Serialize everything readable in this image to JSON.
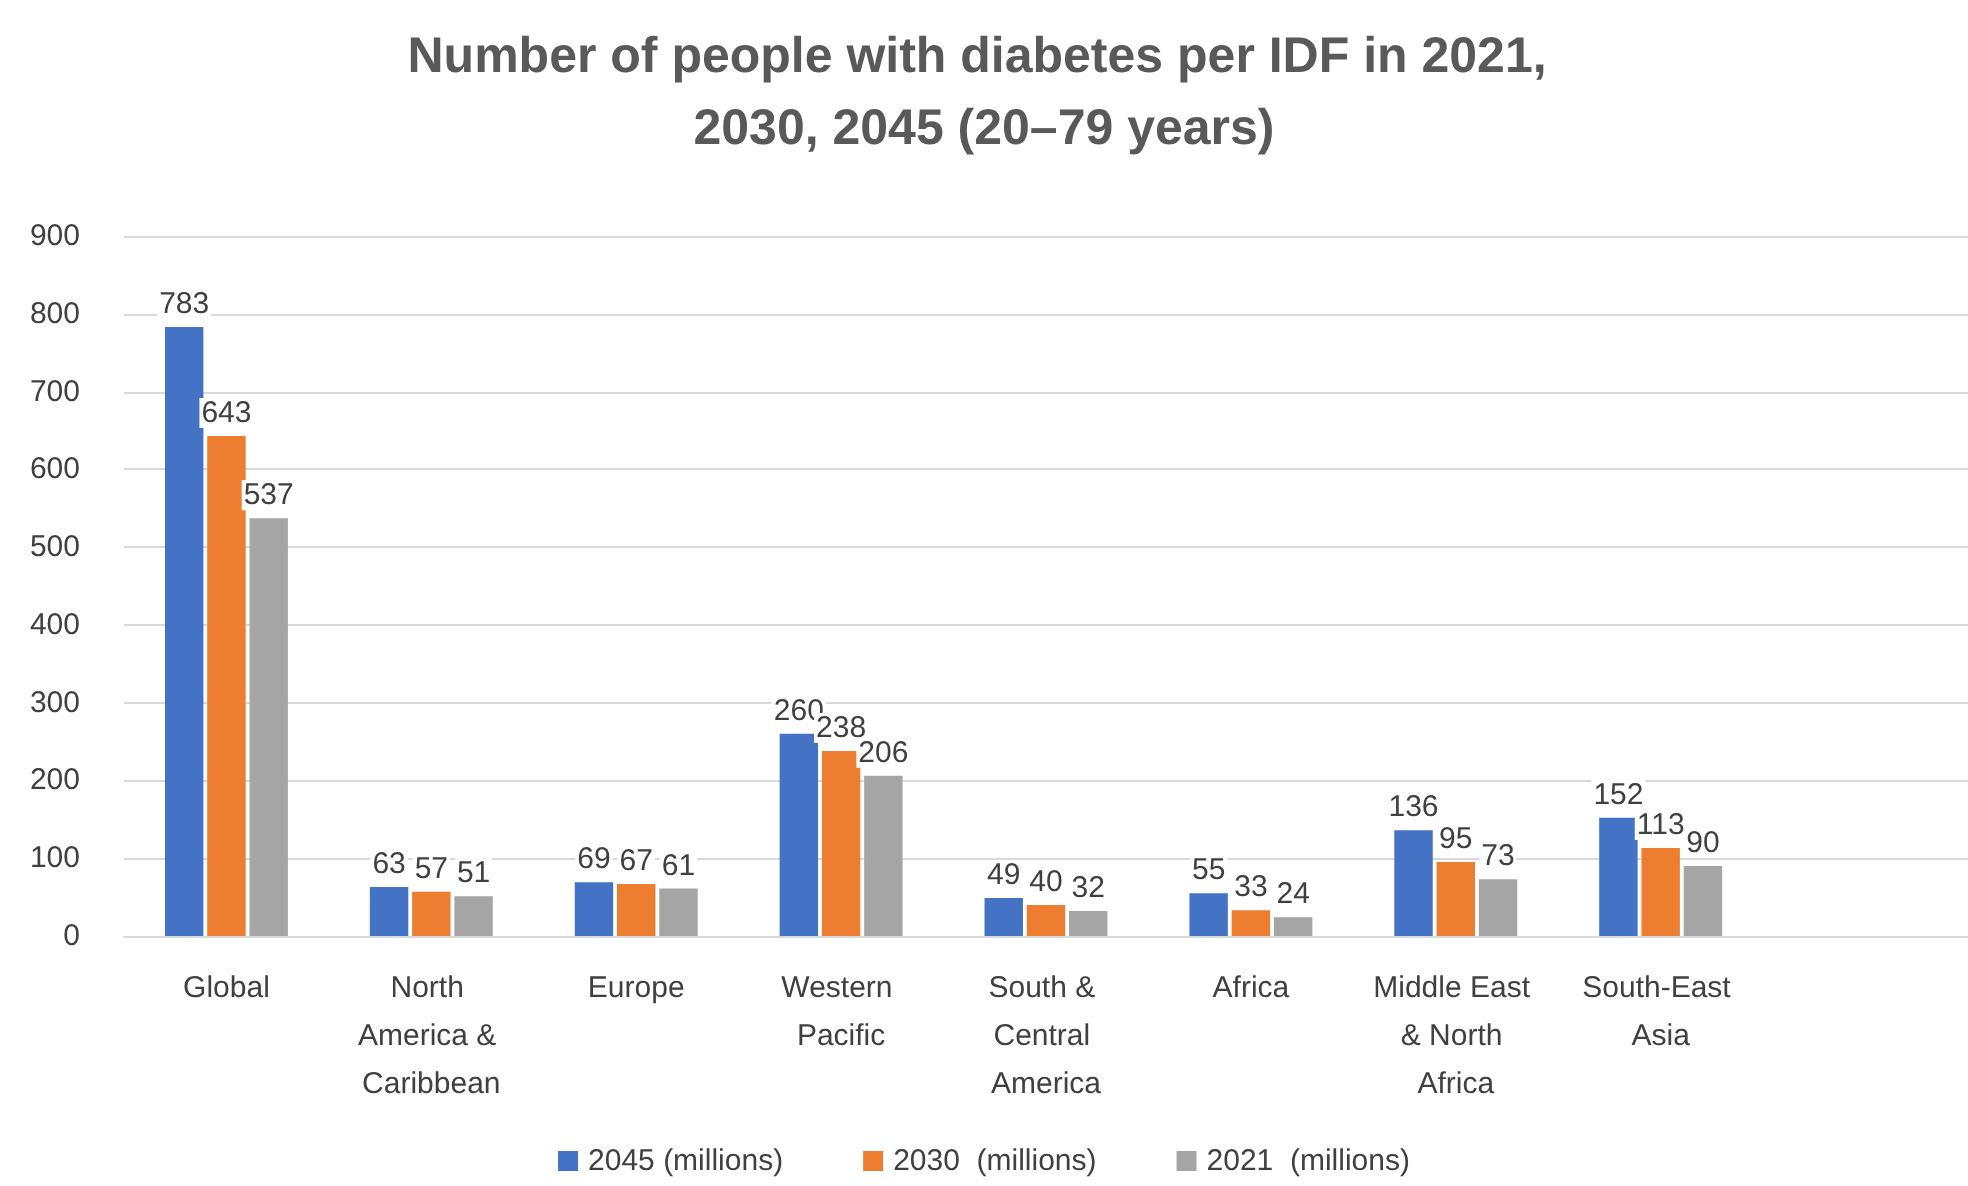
{
  "chart_data": {
    "type": "bar",
    "title": "Number of people with diabetes per IDF in 2021, 2030, 2045 (20–79 years)",
    "categories": [
      "Global",
      "North America & Caribbean",
      "Europe",
      "Western Pacific",
      "South & Central America",
      "Africa",
      "Middle East & North Africa",
      "South-East Asia",
      null
    ],
    "series": [
      {
        "name": "2045 (millions)",
        "color": "#4472c4",
        "values": [
          783,
          63,
          69,
          260,
          49,
          55,
          136,
          152,
          null
        ]
      },
      {
        "name": "2030  (millions)",
        "color": "#ed7d31",
        "values": [
          643,
          57,
          67,
          238,
          40,
          33,
          95,
          113,
          null
        ]
      },
      {
        "name": "2021  (millions)",
        "color": "#a5a5a5",
        "values": [
          537,
          51,
          61,
          206,
          32,
          24,
          73,
          90,
          null
        ]
      }
    ],
    "ylim": [
      0,
      900
    ],
    "yticks": [
      0,
      100,
      200,
      300,
      400,
      500,
      600,
      700,
      800,
      900
    ],
    "grid": "y",
    "legend": "bottom",
    "data_labels": true
  }
}
